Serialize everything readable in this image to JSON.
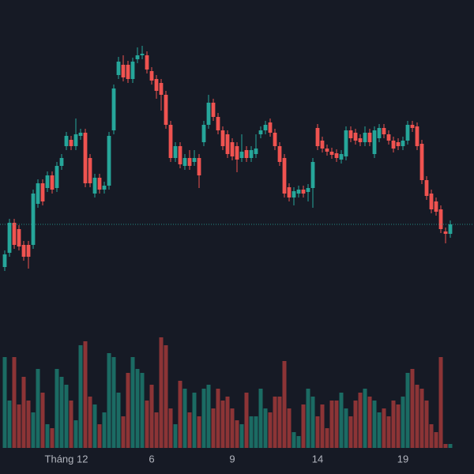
{
  "chart_data": {
    "type": "candlestick",
    "categories": [
      null,
      null,
      null,
      null,
      null,
      null,
      null,
      null,
      null,
      null,
      null,
      null,
      null,
      "Tháng 12",
      null,
      null,
      null,
      null,
      null,
      null,
      null,
      null,
      null,
      null,
      null,
      null,
      null,
      null,
      null,
      null,
      null,
      "6",
      null,
      null,
      null,
      null,
      null,
      null,
      null,
      null,
      null,
      null,
      null,
      null,
      null,
      null,
      null,
      null,
      "9",
      null,
      null,
      null,
      null,
      null,
      null,
      null,
      null,
      null,
      null,
      null,
      null,
      null,
      null,
      null,
      null,
      null,
      "14",
      null,
      null,
      null,
      null,
      null,
      null,
      null,
      null,
      null,
      null,
      null,
      null,
      null,
      null,
      null,
      null,
      null,
      "19",
      null,
      null,
      null,
      null,
      null,
      null,
      null,
      null,
      null,
      null
    ],
    "open": [
      262,
      280,
      318,
      310,
      290,
      290,
      290,
      342,
      368,
      362,
      378,
      362,
      390,
      415,
      423,
      415,
      428,
      432,
      400,
      355,
      375,
      360,
      365,
      435,
      505,
      518,
      518,
      500,
      525,
      530,
      530,
      510,
      500,
      495,
      480,
      442,
      400,
      415,
      390,
      400,
      395,
      400,
      420,
      442,
      470,
      452,
      435,
      430,
      420,
      415,
      400,
      410,
      400,
      405,
      430,
      435,
      445,
      432,
      415,
      400,
      363,
      350,
      355,
      360,
      357,
      362,
      438,
      422,
      412,
      408,
      406,
      398,
      402,
      435,
      432,
      425,
      420,
      432,
      405,
      425,
      438,
      430,
      422,
      420,
      415,
      422,
      442,
      440,
      418,
      372,
      355,
      345,
      335,
      307,
      304
    ],
    "close": [
      278,
      318,
      290,
      288,
      275,
      275,
      355,
      368,
      345,
      378,
      360,
      390,
      400,
      428,
      415,
      430,
      432,
      368,
      368,
      375,
      360,
      365,
      428,
      488,
      522,
      502,
      500,
      522,
      530,
      532,
      512,
      498,
      485,
      480,
      442,
      400,
      415,
      392,
      400,
      390,
      400,
      378,
      442,
      470,
      452,
      435,
      415,
      405,
      402,
      398,
      408,
      400,
      410,
      412,
      435,
      442,
      432,
      415,
      395,
      355,
      350,
      358,
      360,
      355,
      362,
      395,
      415,
      412,
      408,
      404,
      400,
      405,
      435,
      425,
      422,
      420,
      432,
      420,
      435,
      438,
      430,
      422,
      412,
      415,
      422,
      442,
      438,
      415,
      372,
      352,
      335,
      332,
      310,
      304,
      316
    ],
    "high": [
      283,
      323,
      323,
      315,
      295,
      295,
      360,
      373,
      373,
      383,
      383,
      395,
      405,
      433,
      428,
      450,
      437,
      437,
      405,
      380,
      380,
      370,
      433,
      493,
      528,
      530,
      523,
      527,
      540,
      542,
      535,
      515,
      505,
      500,
      485,
      447,
      420,
      420,
      405,
      410,
      410,
      405,
      447,
      480,
      475,
      457,
      440,
      435,
      425,
      420,
      430,
      415,
      415,
      430,
      440,
      447,
      450,
      437,
      420,
      405,
      368,
      363,
      365,
      365,
      367,
      400,
      443,
      427,
      417,
      413,
      411,
      410,
      440,
      440,
      437,
      430,
      440,
      437,
      440,
      443,
      443,
      435,
      427,
      425,
      427,
      447,
      447,
      445,
      423,
      377,
      360,
      350,
      340,
      312,
      321
    ],
    "low": [
      257,
      275,
      285,
      283,
      270,
      260,
      285,
      337,
      340,
      357,
      355,
      357,
      385,
      410,
      410,
      410,
      423,
      363,
      363,
      350,
      355,
      355,
      360,
      430,
      500,
      497,
      495,
      495,
      520,
      525,
      507,
      493,
      475,
      460,
      437,
      395,
      395,
      387,
      385,
      385,
      390,
      362,
      415,
      437,
      447,
      430,
      410,
      400,
      397,
      382,
      395,
      395,
      395,
      400,
      425,
      430,
      427,
      410,
      390,
      350,
      345,
      340,
      350,
      350,
      345,
      337,
      410,
      407,
      403,
      399,
      395,
      393,
      397,
      420,
      417,
      415,
      415,
      415,
      400,
      420,
      425,
      417,
      407,
      410,
      410,
      417,
      433,
      410,
      367,
      347,
      330,
      327,
      305,
      292,
      299
    ],
    "volume": [
      115,
      60,
      115,
      55,
      90,
      60,
      45,
      100,
      70,
      30,
      25,
      100,
      90,
      80,
      60,
      35,
      130,
      135,
      65,
      55,
      30,
      45,
      120,
      115,
      70,
      40,
      95,
      115,
      100,
      95,
      60,
      80,
      45,
      140,
      130,
      50,
      30,
      85,
      75,
      45,
      70,
      40,
      75,
      80,
      50,
      75,
      60,
      65,
      50,
      35,
      30,
      70,
      40,
      40,
      75,
      50,
      45,
      65,
      65,
      110,
      50,
      20,
      15,
      55,
      75,
      65,
      40,
      55,
      25,
      60,
      60,
      70,
      50,
      40,
      60,
      70,
      75,
      65,
      60,
      45,
      50,
      40,
      60,
      55,
      65,
      95,
      100,
      80,
      75,
      60,
      30,
      20,
      115,
      5,
      5
    ],
    "ylim": [
      180,
      600
    ],
    "y2lim": [
      0,
      150
    ],
    "up_color": "#26a69a",
    "down_color": "#ef5350",
    "volume_up_color": "#1b6b63",
    "volume_down_color": "#8c3436",
    "last_price_line": true
  }
}
